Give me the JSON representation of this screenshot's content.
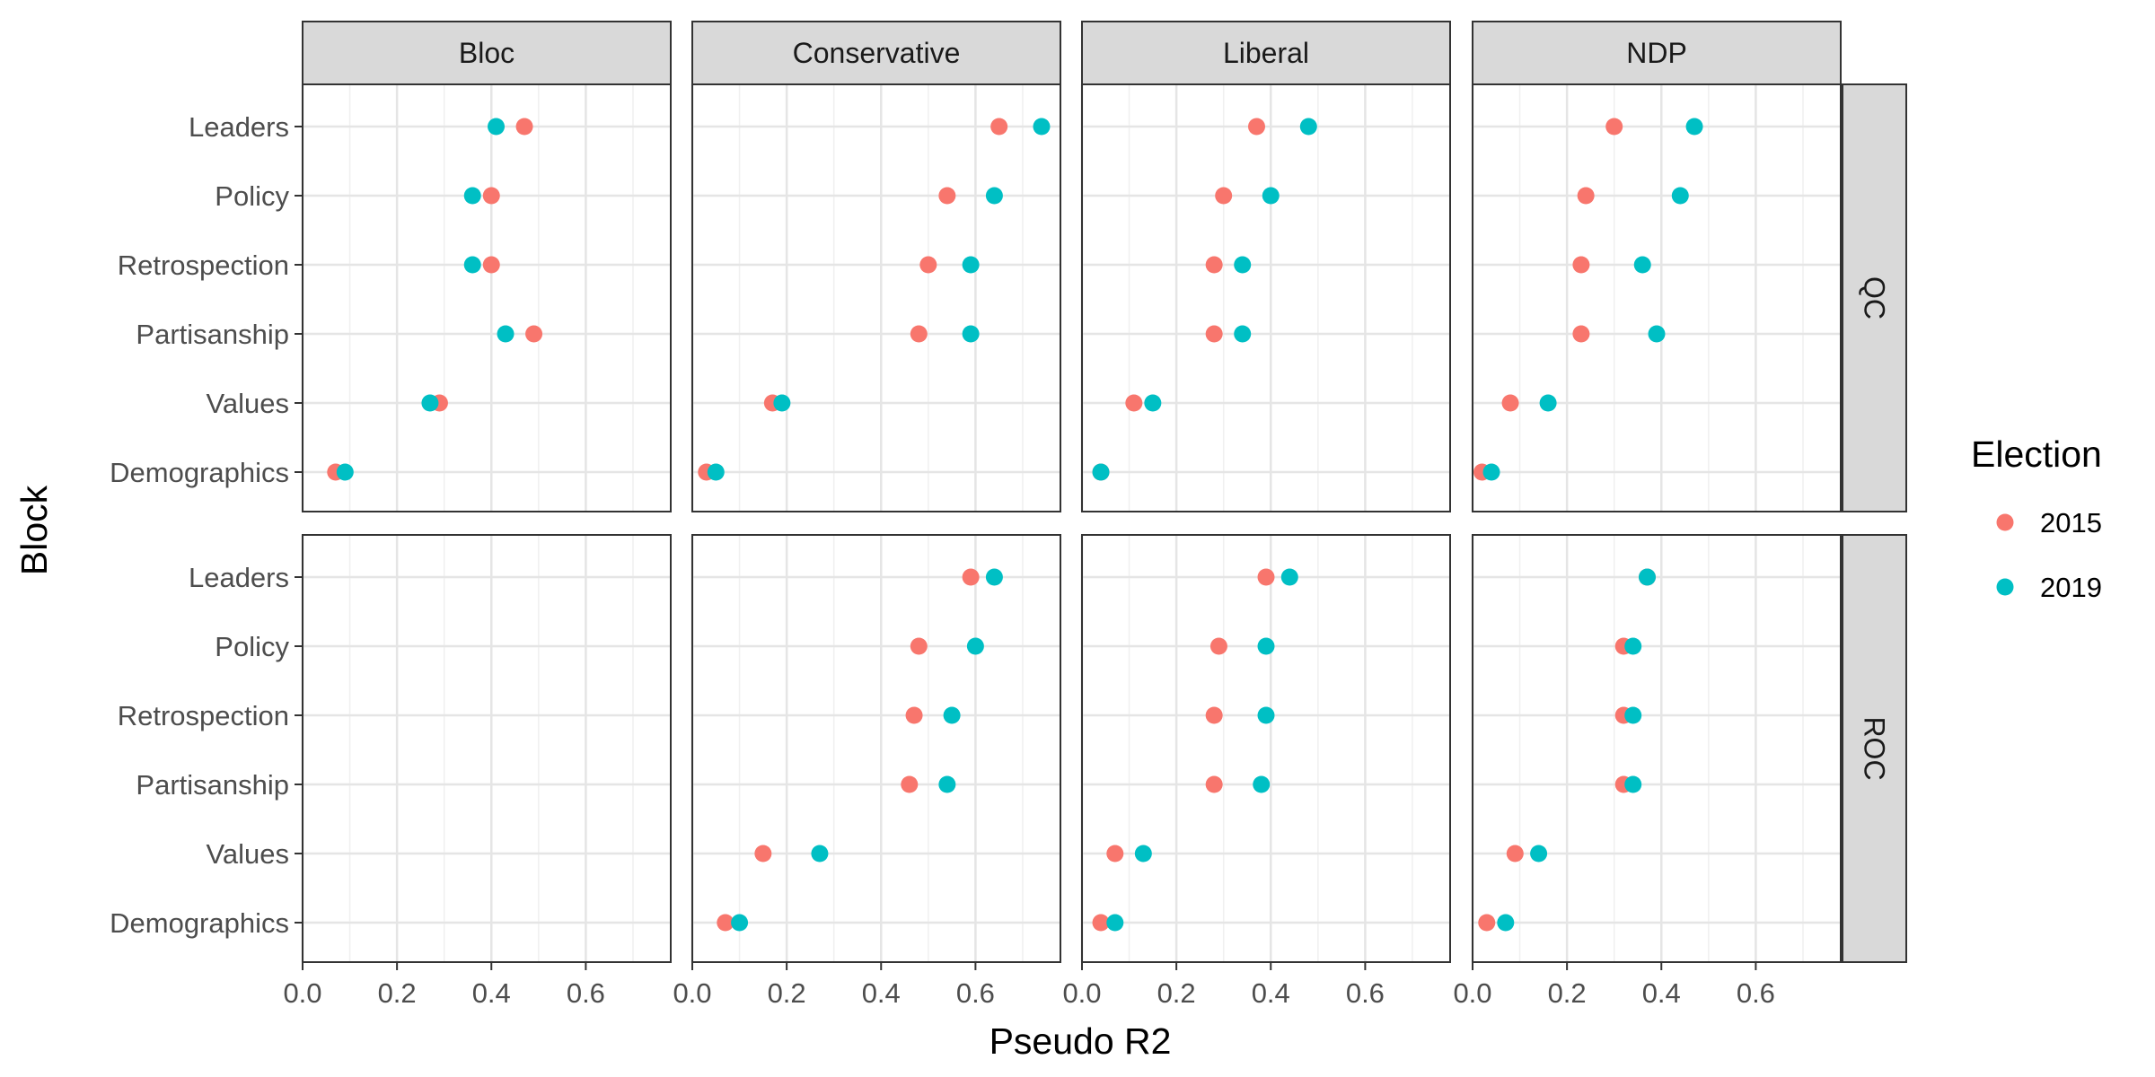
{
  "chart_data": {
    "type": "scatter",
    "facet_columns": [
      "Bloc",
      "Conservative",
      "Liberal",
      "NDP"
    ],
    "facet_rows": [
      "QC",
      "ROC"
    ],
    "categories": [
      "Demographics",
      "Values",
      "Partisanship",
      "Retrospection",
      "Policy",
      "Leaders"
    ],
    "xlabel": "Pseudo R2",
    "ylabel": "Block",
    "xlim": [
      0,
      0.78
    ],
    "x_ticks": [
      "0.0",
      "0.2",
      "0.4",
      "0.6"
    ],
    "grid": true,
    "legend": {
      "title": "Election",
      "position": "right",
      "entries": [
        {
          "label": "2015",
          "color": "#F8766D"
        },
        {
          "label": "2019",
          "color": "#00BFC4"
        }
      ]
    },
    "series": [
      {
        "name": "2015",
        "color": "#F8766D",
        "panels": [
          {
            "row": "QC",
            "col": "Bloc",
            "values": [
              0.07,
              0.29,
              0.49,
              0.4,
              0.4,
              0.47
            ]
          },
          {
            "row": "QC",
            "col": "Conservative",
            "values": [
              0.03,
              0.17,
              0.48,
              0.5,
              0.54,
              0.65
            ]
          },
          {
            "row": "QC",
            "col": "Liberal",
            "values": [
              0.04,
              0.11,
              0.28,
              0.28,
              0.3,
              0.37
            ]
          },
          {
            "row": "QC",
            "col": "NDP",
            "values": [
              0.02,
              0.08,
              0.23,
              0.23,
              0.24,
              0.3
            ]
          },
          {
            "row": "ROC",
            "col": "Bloc",
            "values": [
              null,
              null,
              null,
              null,
              null,
              null
            ]
          },
          {
            "row": "ROC",
            "col": "Conservative",
            "values": [
              0.07,
              0.15,
              0.46,
              0.47,
              0.48,
              0.59
            ]
          },
          {
            "row": "ROC",
            "col": "Liberal",
            "values": [
              0.04,
              0.07,
              0.28,
              0.28,
              0.29,
              0.39
            ]
          },
          {
            "row": "ROC",
            "col": "NDP",
            "values": [
              0.03,
              0.09,
              0.32,
              0.32,
              0.32,
              0.37
            ]
          }
        ]
      },
      {
        "name": "2019",
        "color": "#00BFC4",
        "panels": [
          {
            "row": "QC",
            "col": "Bloc",
            "values": [
              0.09,
              0.27,
              0.43,
              0.36,
              0.36,
              0.41
            ]
          },
          {
            "row": "QC",
            "col": "Conservative",
            "values": [
              0.05,
              0.19,
              0.59,
              0.59,
              0.64,
              0.74
            ]
          },
          {
            "row": "QC",
            "col": "Liberal",
            "values": [
              0.04,
              0.15,
              0.34,
              0.34,
              0.4,
              0.48
            ]
          },
          {
            "row": "QC",
            "col": "NDP",
            "values": [
              0.04,
              0.16,
              0.39,
              0.36,
              0.44,
              0.47
            ]
          },
          {
            "row": "ROC",
            "col": "Bloc",
            "values": [
              null,
              null,
              null,
              null,
              null,
              null
            ]
          },
          {
            "row": "ROC",
            "col": "Conservative",
            "values": [
              0.1,
              0.27,
              0.54,
              0.55,
              0.6,
              0.64
            ]
          },
          {
            "row": "ROC",
            "col": "Liberal",
            "values": [
              0.07,
              0.13,
              0.38,
              0.39,
              0.39,
              0.44
            ]
          },
          {
            "row": "ROC",
            "col": "NDP",
            "values": [
              0.07,
              0.14,
              0.34,
              0.34,
              0.34,
              0.37
            ]
          }
        ]
      }
    ]
  }
}
